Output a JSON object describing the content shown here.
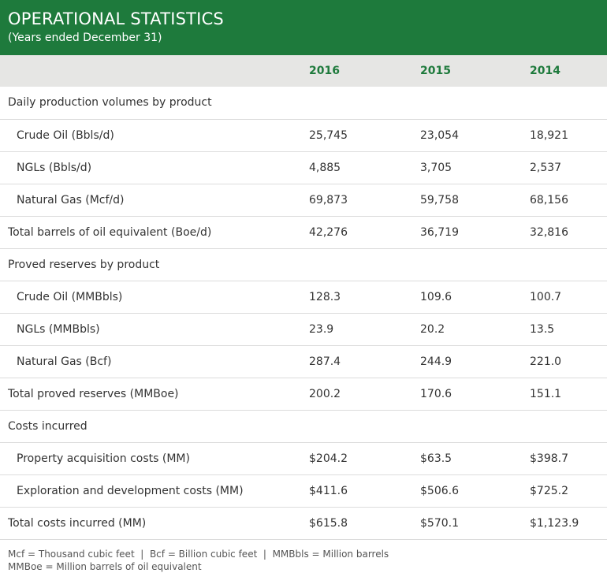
{
  "header": {
    "title": "OPERATIONAL STATISTICS",
    "subtitle": "(Years ended December 31)"
  },
  "table": {
    "columns": [
      "",
      "2016",
      "2015",
      "2014"
    ],
    "rows": [
      {
        "label": "Daily production volumes by product",
        "values": [
          "",
          "",
          ""
        ]
      },
      {
        "label": "Crude Oil (Bbls/d)",
        "values": [
          "25,745",
          "23,054",
          "18,921"
        ]
      },
      {
        "label": "NGLs (Bbls/d)",
        "values": [
          "4,885",
          "3,705",
          "2,537"
        ]
      },
      {
        "label": "Natural Gas (Mcf/d)",
        "values": [
          "69,873",
          "59,758",
          "68,156"
        ]
      },
      {
        "label": "Total barrels of oil equivalent (Boe/d)",
        "values": [
          "42,276",
          "36,719",
          "32,816"
        ]
      },
      {
        "label": "Proved reserves by product",
        "values": [
          "",
          "",
          ""
        ]
      },
      {
        "label": "Crude Oil (MMBbls)",
        "values": [
          "128.3",
          "109.6",
          "100.7"
        ]
      },
      {
        "label": "NGLs (MMBbls)",
        "values": [
          "23.9",
          "20.2",
          "13.5"
        ]
      },
      {
        "label": "Natural Gas (Bcf)",
        "values": [
          "287.4",
          "244.9",
          "221.0"
        ]
      },
      {
        "label": "Total proved reserves (MMBoe)",
        "values": [
          "200.2",
          "170.6",
          "151.1"
        ]
      },
      {
        "label": "Costs incurred",
        "values": [
          "",
          "",
          ""
        ]
      },
      {
        "label": "Property acquisition costs (MM)",
        "values": [
          "$204.2",
          "$63.5",
          "$398.7"
        ]
      },
      {
        "label": "Exploration and development costs (MM)",
        "values": [
          "$411.6",
          "$506.6",
          "$725.2"
        ]
      },
      {
        "label": "Total costs incurred (MM)",
        "values": [
          "$615.8",
          "$570.1",
          "$1,123.9"
        ]
      }
    ]
  },
  "footer": {
    "line1": "Mcf = Thousand cubic feet  |  Bcf = Billion cubic feet  |  MMBbls = Million barrels",
    "line2": "MMBoe = Million barrels of oil equivalent"
  }
}
